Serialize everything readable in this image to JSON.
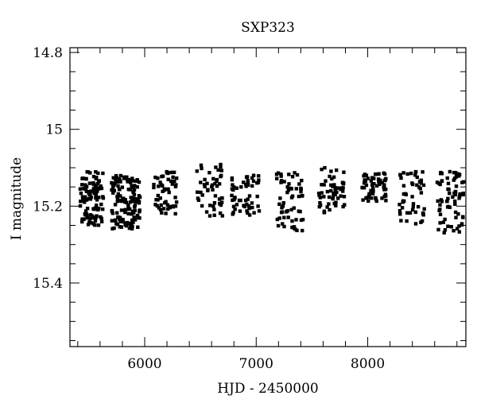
{
  "chart_data": {
    "type": "scatter",
    "title": "SXP323",
    "xlabel": "HJD - 2450000",
    "ylabel": "I magnitude",
    "xlim": [
      5330,
      8880
    ],
    "ylim": [
      15.4,
      14.8
    ],
    "y_inverted": true,
    "x_ticks": [
      6000,
      7000,
      8000
    ],
    "x_tick_labels": [
      "6000",
      "7000",
      "8000"
    ],
    "y_ticks": [
      14.8,
      15,
      15.2,
      15.4
    ],
    "y_tick_labels": [
      "14.8",
      "15",
      "15.2",
      "15.4"
    ],
    "grid": false,
    "marker_color": "#000000",
    "seasons": [
      {
        "x_range": [
          5420,
          5630
        ],
        "y_range": [
          15.11,
          15.25
        ],
        "n": 110
      },
      {
        "x_range": [
          5700,
          5960
        ],
        "y_range": [
          15.12,
          15.26
        ],
        "n": 130
      },
      {
        "x_range": [
          6080,
          6300
        ],
        "y_range": [
          15.11,
          15.22
        ],
        "n": 55
      },
      {
        "x_range": [
          6450,
          6700
        ],
        "y_range": [
          15.09,
          15.23
        ],
        "n": 50
      },
      {
        "x_range": [
          6780,
          7050
        ],
        "y_range": [
          15.12,
          15.23
        ],
        "n": 55
      },
      {
        "x_range": [
          7180,
          7420
        ],
        "y_range": [
          15.11,
          15.27
        ],
        "n": 60
      },
      {
        "x_range": [
          7560,
          7800
        ],
        "y_range": [
          15.1,
          15.22
        ],
        "n": 55
      },
      {
        "x_range": [
          7950,
          8170
        ],
        "y_range": [
          15.11,
          15.19
        ],
        "n": 60
      },
      {
        "x_range": [
          8280,
          8520
        ],
        "y_range": [
          15.11,
          15.25
        ],
        "n": 50
      },
      {
        "x_range": [
          8620,
          8860
        ],
        "y_range": [
          15.11,
          15.27
        ],
        "n": 70
      }
    ]
  }
}
